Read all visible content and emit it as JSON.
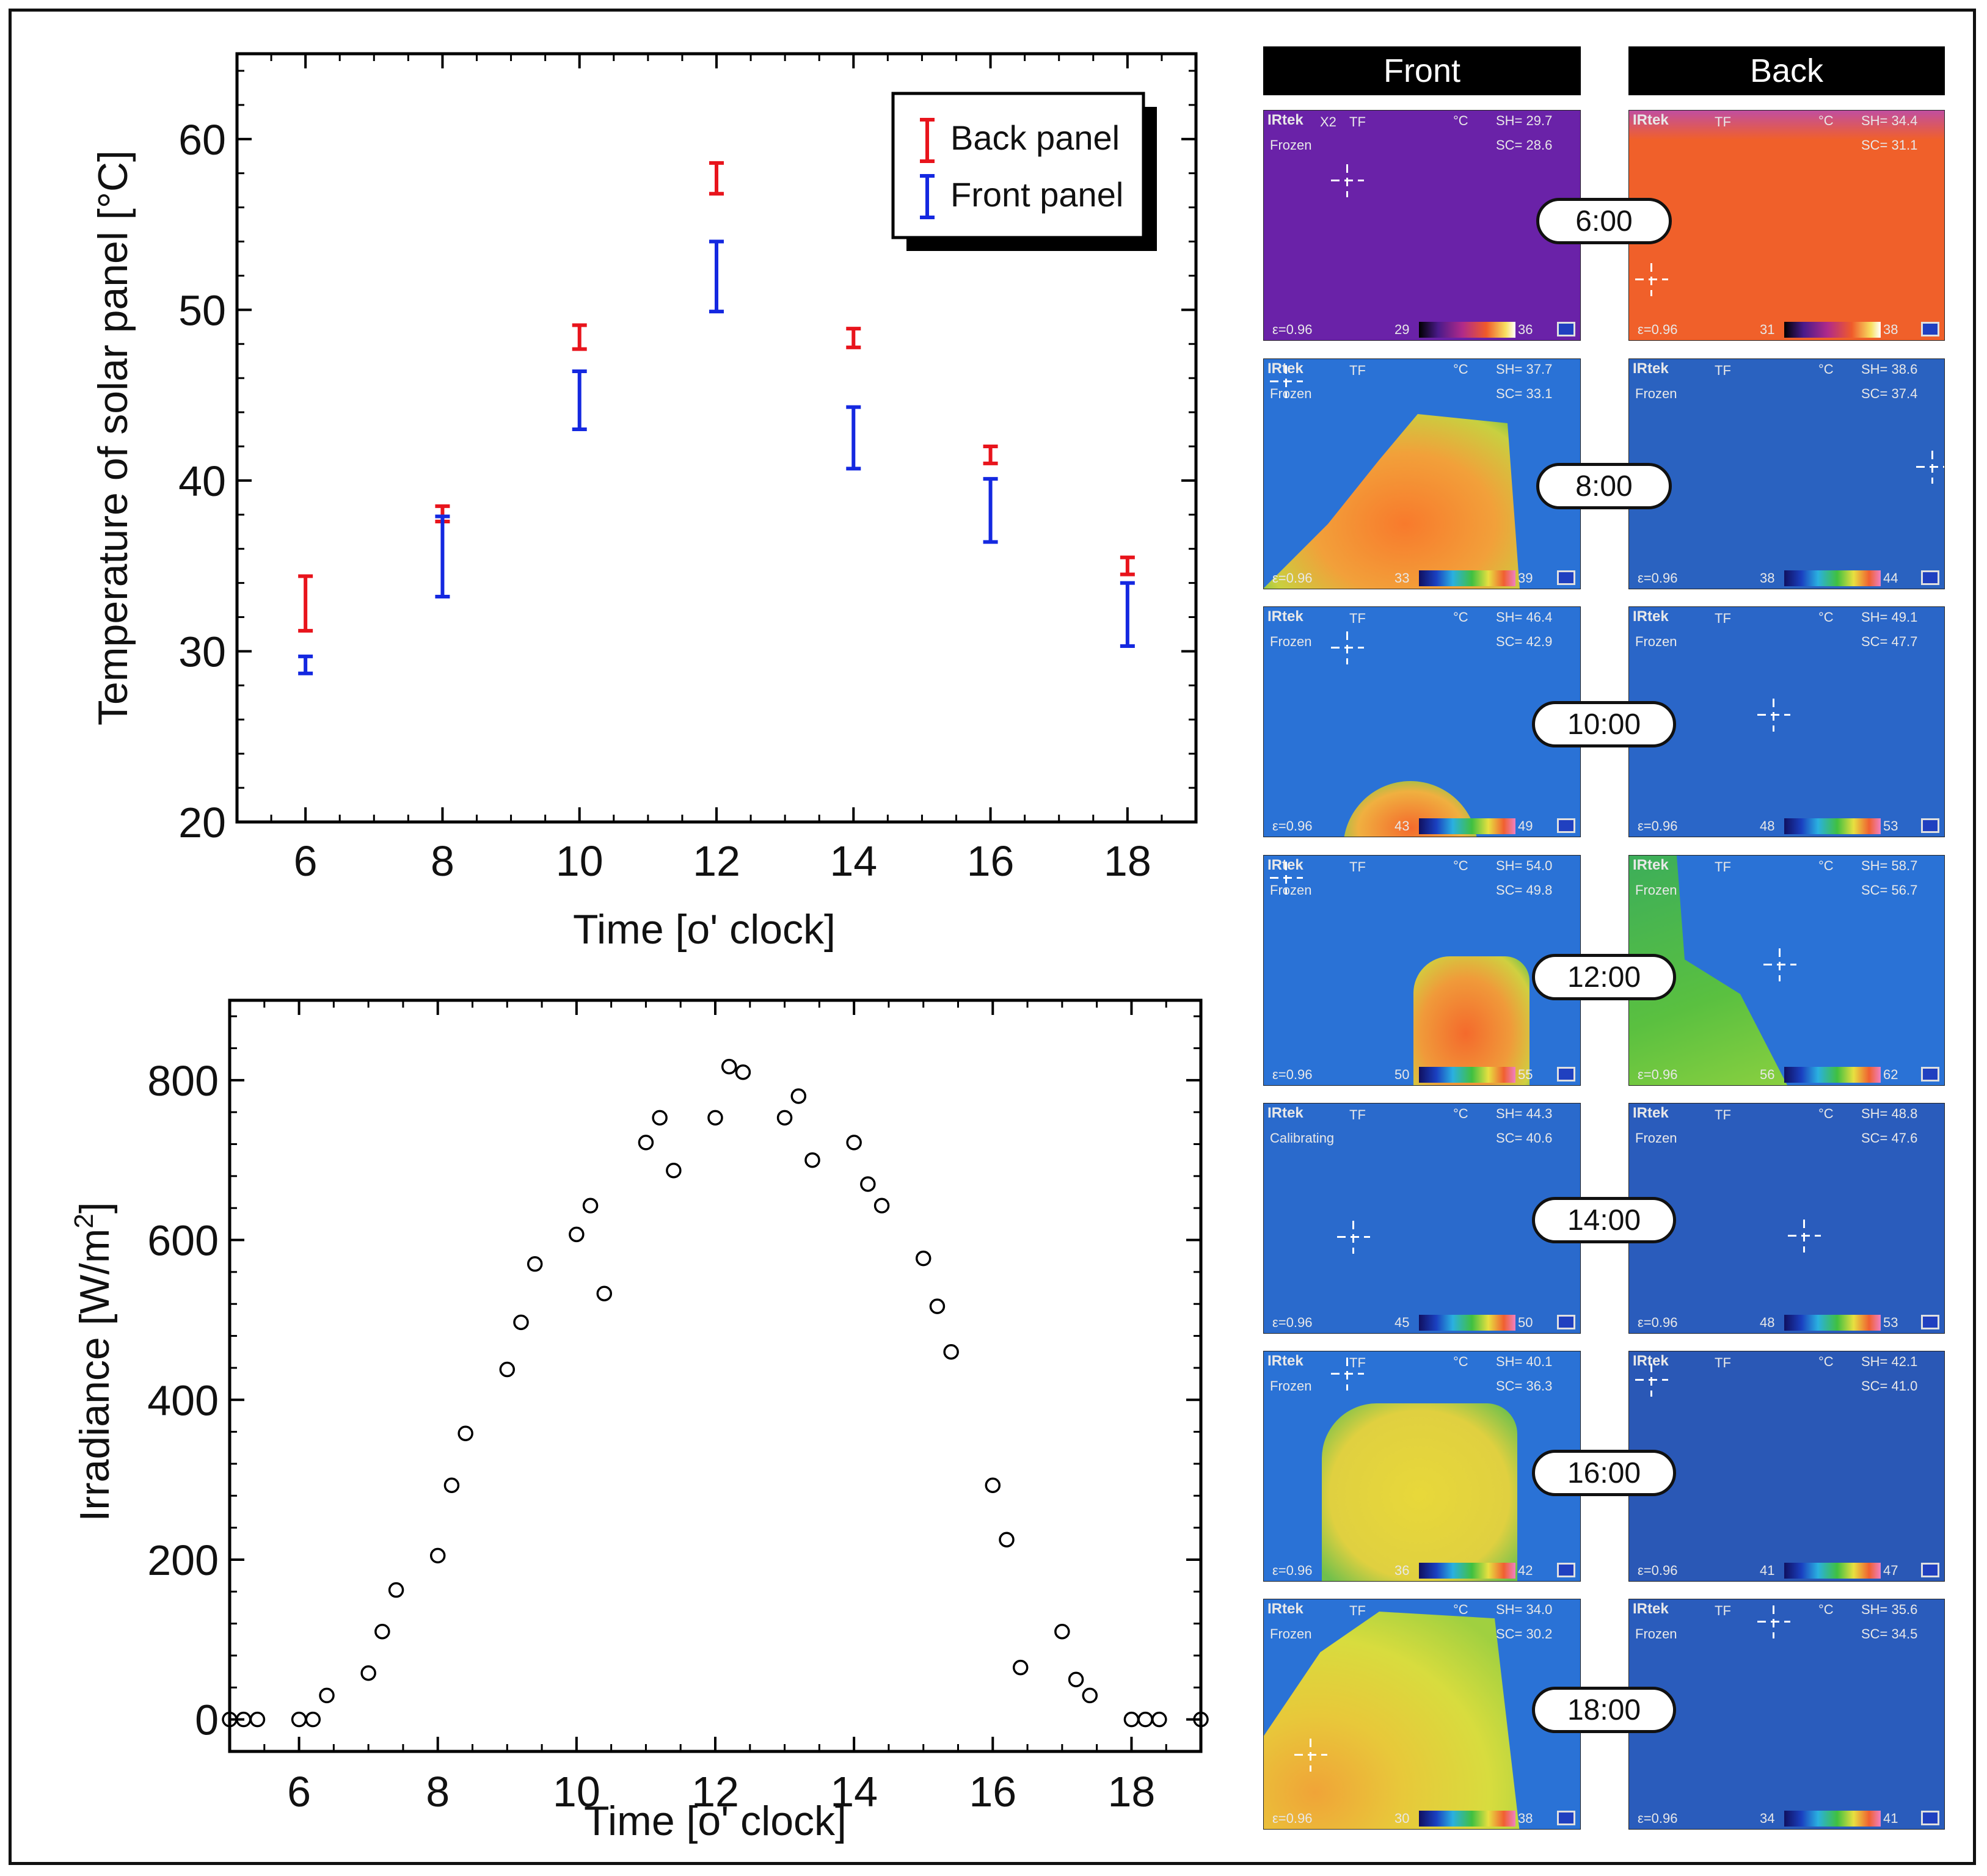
{
  "chart_data": [
    {
      "type": "errorbar",
      "title": "",
      "xlabel": "Time [o' clock]",
      "ylabel": "Temperature of solar panel [°C]",
      "xlim": [
        5,
        19
      ],
      "ylim": [
        20,
        65
      ],
      "xticks": [
        6,
        8,
        10,
        12,
        14,
        16,
        18
      ],
      "yticks": [
        20,
        30,
        40,
        50,
        60
      ],
      "legend_position": "top-right",
      "series": [
        {
          "name": "Back panel",
          "color": "#e8141c",
          "x": [
            6,
            8,
            10,
            12,
            14,
            16,
            18
          ],
          "low": [
            31.2,
            37.6,
            47.7,
            56.8,
            47.8,
            41.0,
            34.5
          ],
          "high": [
            34.4,
            38.5,
            49.1,
            58.6,
            48.9,
            42.0,
            35.5
          ]
        },
        {
          "name": "Front panel",
          "color": "#1428e0",
          "x": [
            6,
            8,
            10,
            12,
            14,
            16,
            18
          ],
          "low": [
            28.7,
            33.2,
            43.0,
            49.9,
            40.7,
            36.4,
            30.3
          ],
          "high": [
            29.7,
            37.9,
            46.4,
            54.0,
            44.3,
            40.1,
            34.0
          ]
        }
      ]
    },
    {
      "type": "scatter",
      "title": "",
      "xlabel": "Time [o' clock]",
      "ylabel_main": "Irradiance [W/m",
      "ylabel_sup": "2",
      "ylabel_close": "]",
      "xlim": [
        5,
        19
      ],
      "ylim": [
        -40,
        900
      ],
      "xticks": [
        6,
        8,
        10,
        12,
        14,
        16,
        18
      ],
      "yticks": [
        0,
        200,
        400,
        600,
        800
      ],
      "marker": "open-circle",
      "x": [
        5.0,
        5.2,
        5.4,
        6.0,
        6.2,
        6.4,
        7.0,
        7.2,
        7.4,
        8.0,
        8.2,
        8.4,
        9.0,
        9.2,
        9.4,
        10.0,
        10.2,
        10.4,
        11.0,
        11.2,
        11.4,
        12.0,
        12.2,
        12.4,
        13.0,
        13.2,
        13.4,
        14.0,
        14.2,
        14.4,
        15.0,
        15.2,
        15.4,
        16.0,
        16.2,
        16.4,
        17.0,
        17.2,
        17.4,
        18.0,
        18.2,
        18.4,
        19.0
      ],
      "y": [
        0,
        0,
        0,
        0,
        0,
        30,
        58,
        110,
        162,
        205,
        293,
        358,
        438,
        497,
        570,
        607,
        643,
        533,
        722,
        753,
        687,
        753,
        817,
        810,
        753,
        780,
        700,
        722,
        670,
        643,
        577,
        517,
        460,
        293,
        225,
        65,
        110,
        50,
        30,
        0,
        0,
        0,
        0
      ]
    }
  ],
  "thermal_panel": {
    "headers": {
      "front": "Front",
      "back": "Back"
    },
    "rows": [
      {
        "time": "6:00",
        "front": {
          "brand": "IRtek",
          "mode": "X2",
          "tf": "TF",
          "unit": "°C",
          "status": "Frozen",
          "sh": "SH= 29.7",
          "sc": "SC= 28.6",
          "emis": "ε=0.96",
          "min": "29",
          "max": "36",
          "bg": "#6a22a8",
          "blob": "none"
        },
        "back": {
          "brand": "IRtek",
          "mode": "",
          "tf": "TF",
          "unit": "°C",
          "status": "",
          "sh": "SH= 34.4",
          "sc": "SC= 31.1",
          "emis": "ε=0.96",
          "min": "31",
          "max": "38",
          "bg": "#f0602a",
          "blob": "none"
        }
      },
      {
        "time": "8:00",
        "front": {
          "brand": "IRtek",
          "mode": "",
          "tf": "TF",
          "unit": "°C",
          "status": "Frozen",
          "sh": "SH= 37.7",
          "sc": "SC= 33.1",
          "emis": "ε=0.96",
          "min": "33",
          "max": "39",
          "bg": "#2a72d6",
          "blob": "big-orange"
        },
        "back": {
          "brand": "IRtek",
          "mode": "",
          "tf": "TF",
          "unit": "°C",
          "status": "Frozen",
          "sh": "SH= 38.6",
          "sc": "SC= 37.4",
          "emis": "ε=0.96",
          "min": "38",
          "max": "44",
          "bg": "#2a62c0",
          "blob": "none"
        }
      },
      {
        "time": "10:00",
        "front": {
          "brand": "IRtek",
          "mode": "",
          "tf": "TF",
          "unit": "°C",
          "status": "Frozen",
          "sh": "SH= 46.4",
          "sc": "SC= 42.9",
          "emis": "ε=0.96",
          "min": "43",
          "max": "49",
          "bg": "#2a72d6",
          "blob": "small-orange"
        },
        "back": {
          "brand": "IRtek",
          "mode": "",
          "tf": "TF",
          "unit": "°C",
          "status": "Frozen",
          "sh": "SH= 49.1",
          "sc": "SC= 47.7",
          "emis": "ε=0.96",
          "min": "48",
          "max": "53",
          "bg": "#2a66c8",
          "blob": "none"
        }
      },
      {
        "time": "12:00",
        "front": {
          "brand": "IRtek",
          "mode": "",
          "tf": "TF",
          "unit": "°C",
          "status": "Frozen",
          "sh": "SH= 54.0",
          "sc": "SC= 49.8",
          "emis": "ε=0.96",
          "min": "50",
          "max": "55",
          "bg": "#2a72d6",
          "blob": "mid-orange"
        },
        "back": {
          "brand": "IRtek",
          "mode": "",
          "tf": "TF",
          "unit": "°C",
          "status": "Frozen",
          "sh": "SH= 58.7",
          "sc": "SC= 56.7",
          "emis": "ε=0.96",
          "min": "56",
          "max": "62",
          "bg": "#2a72d6",
          "blob": "green-left"
        }
      },
      {
        "time": "14:00",
        "front": {
          "brand": "IRtek",
          "mode": "",
          "tf": "TF",
          "unit": "°C",
          "status": "Calibrating",
          "sh": "SH= 44.3",
          "sc": "SC= 40.6",
          "emis": "ε=0.96",
          "min": "45",
          "max": "50",
          "bg": "#2a6acc",
          "blob": "none"
        },
        "back": {
          "brand": "IRtek",
          "mode": "",
          "tf": "TF",
          "unit": "°C",
          "status": "Frozen",
          "sh": "SH= 48.8",
          "sc": "SC= 47.6",
          "emis": "ε=0.96",
          "min": "48",
          "max": "53",
          "bg": "#2a5cbc",
          "blob": "none"
        }
      },
      {
        "time": "16:00",
        "front": {
          "brand": "IRtek",
          "mode": "",
          "tf": "TF",
          "unit": "°C",
          "status": "Frozen",
          "sh": "SH= 40.1",
          "sc": "SC= 36.3",
          "emis": "ε=0.96",
          "min": "36",
          "max": "42",
          "bg": "#2a72d6",
          "blob": "yellow"
        },
        "back": {
          "brand": "IRtek",
          "mode": "",
          "tf": "TF",
          "unit": "°C",
          "status": "",
          "sh": "SH= 42.1",
          "sc": "SC= 41.0",
          "emis": "ε=0.96",
          "min": "41",
          "max": "47",
          "bg": "#2a58b6",
          "blob": "none"
        }
      },
      {
        "time": "18:00",
        "front": {
          "brand": "IRtek",
          "mode": "",
          "tf": "TF",
          "unit": "°C",
          "status": "Frozen",
          "sh": "SH= 34.0",
          "sc": "SC= 30.2",
          "emis": "ε=0.96",
          "min": "30",
          "max": "38",
          "bg": "#2a72d6",
          "blob": "big-yellow"
        },
        "back": {
          "brand": "IRtek",
          "mode": "",
          "tf": "TF",
          "unit": "°C",
          "status": "Frozen",
          "sh": "SH= 35.6",
          "sc": "SC= 34.5",
          "emis": "ε=0.96",
          "min": "34",
          "max": "41",
          "bg": "#2a5cbc",
          "blob": "none"
        }
      }
    ]
  }
}
